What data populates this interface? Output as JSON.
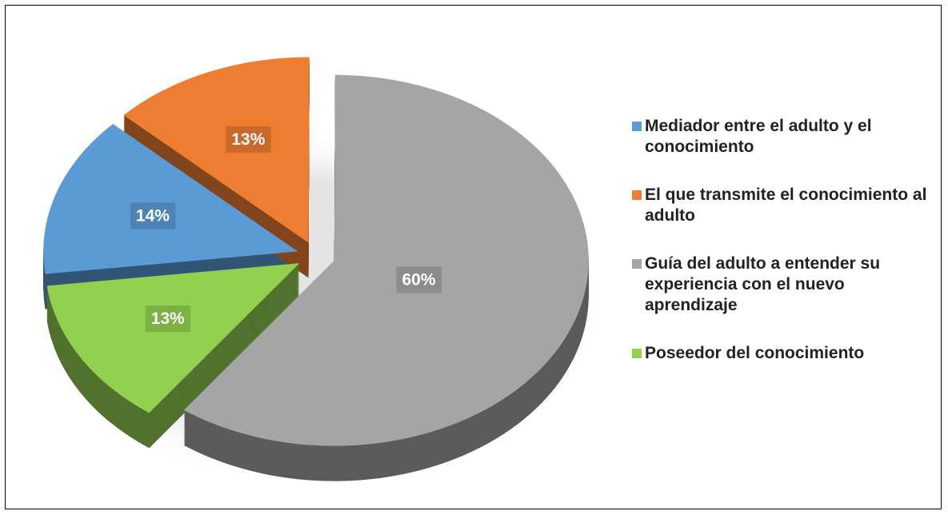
{
  "chart_data": {
    "type": "pie",
    "categories": [
      "Mediador entre el adulto y el conocimiento",
      "El que transmite el conocimiento al adulto",
      "Guía del adulto a entender su experiencia con el nuevo aprendizaje",
      "Poseedor del conocimiento"
    ],
    "values": [
      14,
      13,
      60,
      13
    ],
    "value_labels": [
      "14%",
      "13%",
      "60%",
      "13%"
    ],
    "colors": [
      "#5b9bd5",
      "#ed7d31",
      "#a5a5a5",
      "#92d050"
    ],
    "legend": "right"
  }
}
